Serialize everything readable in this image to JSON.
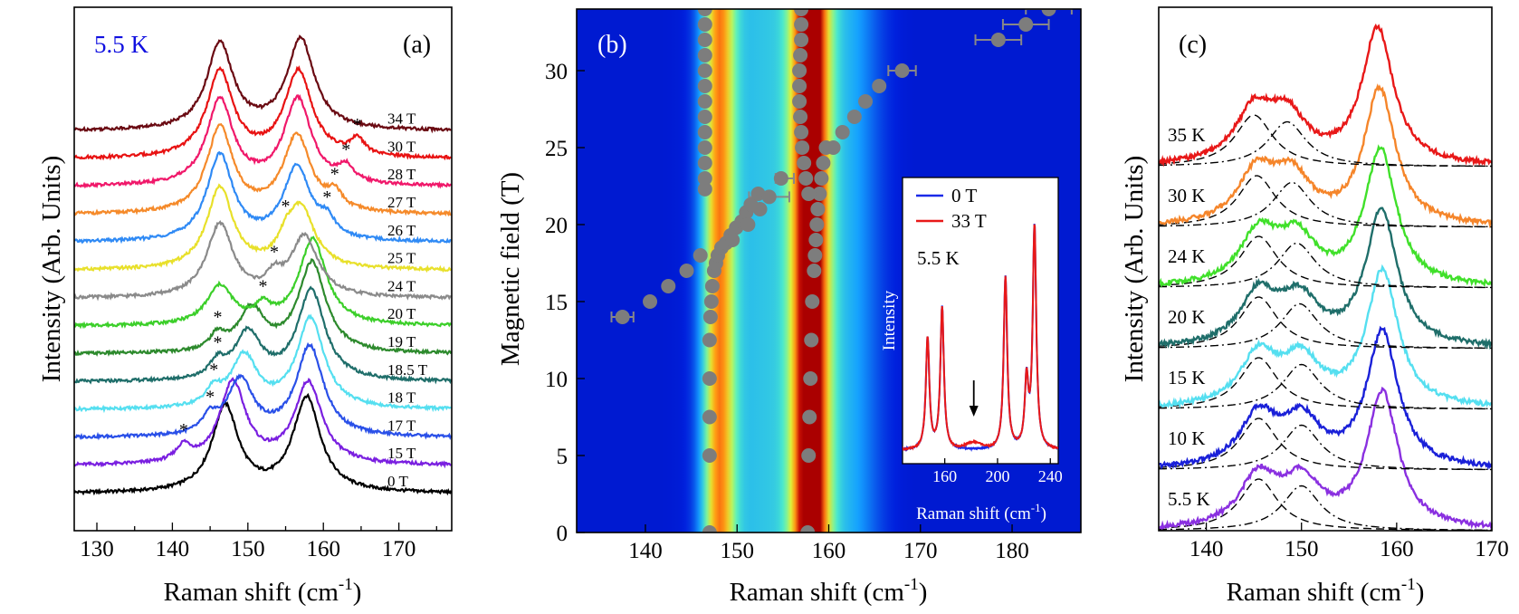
{
  "chart_data": [
    {
      "panel": "(a)",
      "type": "line",
      "title": "5.5 K",
      "title_color": "#1010e0",
      "xlabel": "Raman shift (cm",
      "xlabel_sup": "-1",
      "xlabel_end": ")",
      "ylabel": "Intensity (Arb. Units)",
      "xlim": [
        127,
        177
      ],
      "xticks": [
        130,
        140,
        150,
        160,
        170
      ],
      "y_scale": "stacked offsets, arbitrary units",
      "peak_positions_cm-1": [
        147,
        158
      ],
      "series": [
        {
          "name": "0 T",
          "color": "#000000",
          "p1": 147.0,
          "p2": 157.8,
          "a1": 1.0,
          "a2": 1.1,
          "extra": null
        },
        {
          "name": "15 T",
          "color": "#7a1fe0",
          "p1": 148.0,
          "p2": 158.0,
          "a1": 0.95,
          "a2": 0.95,
          "extra": 141.5
        },
        {
          "name": "17 T",
          "color": "#2a50e8",
          "p1": 149.0,
          "p2": 158.2,
          "a1": 0.65,
          "a2": 1.05,
          "extra": 145.0
        },
        {
          "name": "18 T",
          "color": "#55dff0",
          "p1": 149.5,
          "p2": 158.3,
          "a1": 0.6,
          "a2": 1.05,
          "extra": 145.5
        },
        {
          "name": "18.5 T",
          "color": "#1f6e6a",
          "p1": 150.0,
          "p2": 158.4,
          "a1": 0.55,
          "a2": 1.05,
          "extra": 146.0
        },
        {
          "name": "19 T",
          "color": "#2d8a2d",
          "p1": 150.5,
          "p2": 158.5,
          "a1": 0.5,
          "a2": 1.05,
          "extra": 146.0
        },
        {
          "name": "20 T",
          "color": "#3ccf2a",
          "p1": 146.3,
          "p2": 158.6,
          "a1": 0.45,
          "a2": 1.0,
          "extra": 152.0
        },
        {
          "name": "24 T",
          "color": "#8a8a8a",
          "p1": 146.3,
          "p2": 157.5,
          "a1": 0.85,
          "a2": 0.7,
          "extra": 153.5
        },
        {
          "name": "25 T",
          "color": "#e8e02a",
          "p1": 146.3,
          "p2": 157.0,
          "a1": 0.95,
          "a2": 0.7,
          "extra": 155.0
        },
        {
          "name": "26 T",
          "color": "#2f8af5",
          "p1": 146.3,
          "p2": 156.5,
          "a1": 1.0,
          "a2": 0.85,
          "extra": 160.5
        },
        {
          "name": "27 T",
          "color": "#f58a2a",
          "p1": 146.3,
          "p2": 156.5,
          "a1": 1.0,
          "a2": 0.9,
          "extra": 161.5
        },
        {
          "name": "28 T",
          "color": "#f0186a",
          "p1": 146.3,
          "p2": 156.6,
          "a1": 1.0,
          "a2": 1.0,
          "extra": 163.0
        },
        {
          "name": "30 T",
          "color": "#e81212",
          "p1": 146.3,
          "p2": 156.7,
          "a1": 1.0,
          "a2": 1.0,
          "extra": 164.5
        },
        {
          "name": "34 T",
          "color": "#6a0a12",
          "p1": 146.3,
          "p2": 157.0,
          "a1": 1.0,
          "a2": 1.05,
          "extra": null
        }
      ]
    },
    {
      "panel": "(b)",
      "type": "heatmap",
      "xlabel": "Raman shift (cm",
      "xlabel_sup": "-1",
      "xlabel_end": ")",
      "ylabel": "Magnetic field (T)",
      "xlim": [
        132.5,
        187.5
      ],
      "ylim": [
        0,
        34
      ],
      "xticks": [
        140,
        150,
        160,
        170,
        180
      ],
      "yticks": [
        0,
        5,
        10,
        15,
        20,
        25,
        30
      ],
      "colormap": "jet",
      "low_mode_points": [
        [
          147,
          0
        ],
        [
          147,
          5
        ],
        [
          147,
          7.5
        ],
        [
          147,
          10
        ],
        [
          147,
          12.5
        ],
        [
          147.1,
          14
        ],
        [
          147.2,
          15
        ],
        [
          147.3,
          16
        ],
        [
          147.5,
          17
        ],
        [
          147.7,
          17.5
        ],
        [
          147.9,
          18
        ],
        [
          148.3,
          18.5
        ],
        [
          148.8,
          18.8
        ],
        [
          149.3,
          19.3
        ],
        [
          149.9,
          19.8
        ],
        [
          150.5,
          20.2
        ],
        [
          151.0,
          20.8
        ],
        [
          151.5,
          21.3
        ],
        [
          152.3,
          22.0
        ],
        [
          146.5,
          22.3
        ],
        [
          146.5,
          23
        ],
        [
          146.5,
          24
        ],
        [
          146.5,
          25
        ],
        [
          146.5,
          26
        ],
        [
          146.5,
          27
        ],
        [
          146.5,
          28
        ],
        [
          146.5,
          29
        ],
        [
          146.5,
          30
        ],
        [
          146.5,
          31
        ],
        [
          146.5,
          32
        ],
        [
          146.5,
          33
        ],
        [
          146.5,
          34
        ]
      ],
      "high_mode_points": [
        [
          157.7,
          0
        ],
        [
          157.8,
          5
        ],
        [
          157.9,
          7.5
        ],
        [
          158.0,
          10
        ],
        [
          158.1,
          12.5
        ],
        [
          158.2,
          15
        ],
        [
          158.4,
          17
        ],
        [
          158.5,
          18
        ],
        [
          158.6,
          19
        ],
        [
          158.7,
          20
        ],
        [
          158.8,
          21
        ],
        [
          159.0,
          22
        ],
        [
          159.2,
          23
        ],
        [
          159.4,
          24
        ],
        [
          159.7,
          25
        ],
        [
          157.8,
          22
        ],
        [
          157.5,
          23
        ],
        [
          157.3,
          24
        ],
        [
          157.1,
          25
        ],
        [
          157.0,
          26
        ],
        [
          156.9,
          27
        ],
        [
          156.8,
          28
        ],
        [
          156.8,
          29
        ],
        [
          156.8,
          30
        ],
        [
          156.9,
          31
        ],
        [
          157.0,
          32
        ],
        [
          157.0,
          33
        ],
        [
          157.0,
          34
        ]
      ],
      "crossing_mode_points": [
        [
          137.5,
          14
        ],
        [
          140.5,
          15
        ],
        [
          142.5,
          16
        ],
        [
          144.5,
          17
        ],
        [
          146.0,
          18
        ],
        [
          149.5,
          19
        ],
        [
          151.2,
          20
        ],
        [
          152.5,
          21
        ],
        [
          153.5,
          21.8
        ],
        [
          154.8,
          23
        ],
        [
          160.5,
          25
        ],
        [
          161.5,
          26
        ],
        [
          162.8,
          27
        ],
        [
          164.0,
          28
        ],
        [
          165.5,
          29
        ],
        [
          168,
          30
        ],
        [
          178.5,
          32
        ],
        [
          181.5,
          33
        ],
        [
          184.0,
          34
        ]
      ],
      "error_bars": [
        [
          137.5,
          14,
          1.2
        ],
        [
          153.5,
          21.8,
          2.2
        ],
        [
          155.2,
          23,
          1.0
        ],
        [
          168,
          30,
          1.5
        ],
        [
          178.5,
          32,
          2.5
        ],
        [
          181.5,
          33,
          2.5
        ],
        [
          184.0,
          34,
          2.5
        ]
      ],
      "inset": {
        "xlabel": "Raman shift (cm",
        "xlabel_sup": "-1",
        "xlabel_end": ")",
        "ylabel": "Intensity",
        "xlim": [
          128,
          246
        ],
        "xticks": [
          160,
          200,
          240
        ],
        "annotation": "5.5 K",
        "arrow_at": 182,
        "peaks": [
          [
            147,
            0.5
          ],
          [
            158,
            0.64
          ],
          [
            206,
            0.78
          ],
          [
            222,
            0.3
          ],
          [
            228,
            1.0
          ]
        ],
        "series": [
          {
            "name": "0 T",
            "color": "#1a2ae8"
          },
          {
            "name": "33 T",
            "color": "#e81818"
          }
        ]
      }
    },
    {
      "panel": "(c)",
      "type": "line",
      "xlabel": "Raman shift (cm",
      "xlabel_sup": "-1",
      "xlabel_end": ")",
      "ylabel": "Intensity (Arb. Units)",
      "xlim": [
        135,
        170
      ],
      "xticks": [
        140,
        150,
        160,
        170
      ],
      "series": [
        {
          "name": "5.5 K",
          "color": "#8a30e0",
          "f1": 145.5,
          "f2": 150.0,
          "p": 158.5
        },
        {
          "name": "10 K",
          "color": "#1a20d8",
          "f1": 145.5,
          "f2": 150.0,
          "p": 158.5
        },
        {
          "name": "15 K",
          "color": "#55dff0",
          "f1": 145.5,
          "f2": 150.0,
          "p": 158.5
        },
        {
          "name": "20 K",
          "color": "#1f6e6a",
          "f1": 145.5,
          "f2": 149.8,
          "p": 158.4
        },
        {
          "name": "24 K",
          "color": "#40e02a",
          "f1": 145.5,
          "f2": 149.5,
          "p": 158.3
        },
        {
          "name": "30 K",
          "color": "#f5852a",
          "f1": 145.3,
          "f2": 149.0,
          "p": 158.2
        },
        {
          "name": "35 K",
          "color": "#e81818",
          "f1": 145.0,
          "f2": 148.5,
          "p": 158.0
        }
      ]
    }
  ]
}
